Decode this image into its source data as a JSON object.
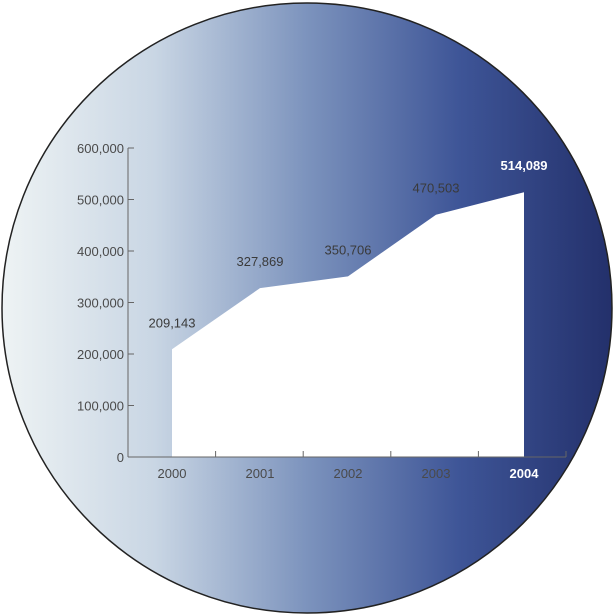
{
  "chart_data": {
    "type": "area",
    "categories": [
      "2000",
      "2001",
      "2002",
      "2003",
      "2004"
    ],
    "values": [
      209143,
      327869,
      350706,
      470503,
      514089
    ],
    "value_labels": [
      "209,143",
      "327,869",
      "350,706",
      "470,503",
      "514,089"
    ],
    "highlight_index": 4,
    "ylim": [
      0,
      600000
    ],
    "yticks": [
      0,
      100000,
      200000,
      300000,
      400000,
      500000,
      600000
    ],
    "ytick_labels": [
      "0",
      "100,000",
      "200,000",
      "300,000",
      "400,000",
      "500,000",
      "600,000"
    ],
    "grid": false,
    "area_color": "#ffffff",
    "background_gradient": [
      "#eef3f4",
      "#c9d6e4",
      "#7c93bd",
      "#3e5597",
      "#23306b"
    ]
  }
}
